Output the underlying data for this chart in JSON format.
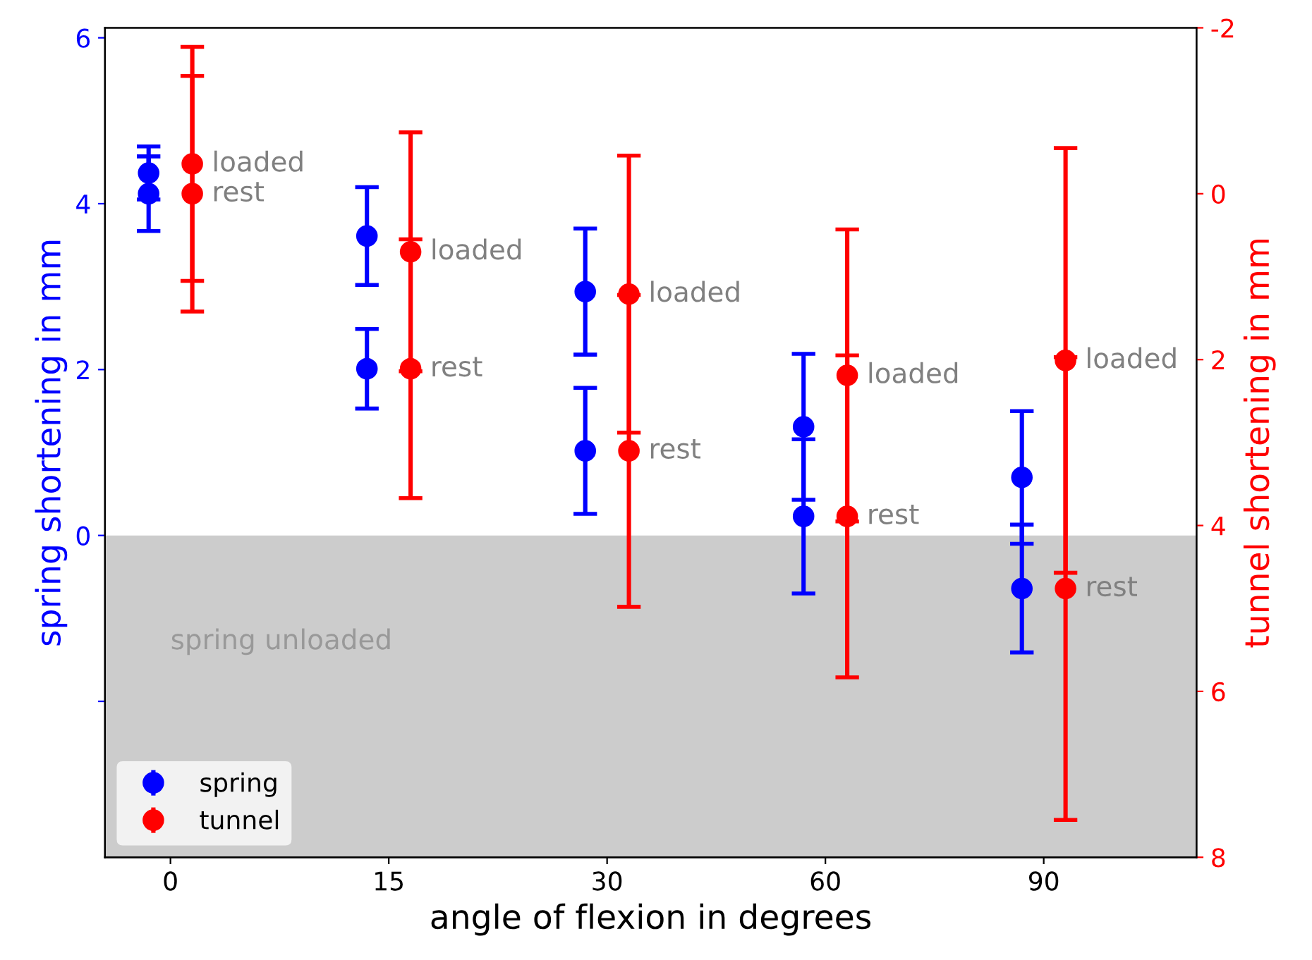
{
  "chart_data": {
    "type": "scatter",
    "xlabel": "angle of flexion in degrees",
    "ylabel": "spring shortening in mm",
    "y2label": "tunnel shortening in mm",
    "categories": [
      "0",
      "15",
      "30",
      "60",
      "90"
    ],
    "series": [
      {
        "name": "spring",
        "color": "#0000ff",
        "values": [
          4.37,
          3.61,
          2.94,
          1.31,
          0.7
        ],
        "errors": [
          0.32,
          0.59,
          0.76,
          0.88,
          0.8
        ]
      },
      {
        "color": "#0000ff",
        "values": [
          4.12,
          2.01,
          1.02,
          0.23,
          -0.64
        ],
        "errors": [
          0.45,
          0.48,
          0.76,
          0.93,
          0.77
        ]
      },
      {
        "name": "tunnel",
        "color": "#ff0000",
        "axis": "y2",
        "values": [
          -0.36,
          0.7,
          1.21,
          2.19,
          2.01
        ],
        "errors": [
          1.41,
          1.44,
          1.67,
          1.76,
          2.56
        ],
        "value_labels": [
          "loaded",
          "loaded",
          "loaded",
          "loaded",
          "loaded"
        ]
      },
      {
        "color": "#ff0000",
        "axis": "y2",
        "values": [
          0.0,
          2.11,
          3.1,
          3.89,
          4.76
        ],
        "errors": [
          1.42,
          1.56,
          1.88,
          1.94,
          2.79
        ],
        "value_labels": [
          "rest",
          "rest",
          "rest",
          "rest",
          "rest"
        ]
      }
    ],
    "ylim": [
      -3.88,
      6.12
    ],
    "yticks": [
      {
        "value": -2,
        "label": null
      },
      0,
      2,
      4,
      6
    ],
    "y2lim": [
      8,
      -2
    ],
    "y2ticks": [
      -2,
      0,
      2,
      4,
      6,
      8
    ],
    "bands": [
      {
        "axis": "y",
        "from": -3.88,
        "to": 0,
        "label": "spring unloaded",
        "color": "#cccccc"
      }
    ],
    "marker": "circle",
    "legend": "bottom left",
    "grid": false
  }
}
